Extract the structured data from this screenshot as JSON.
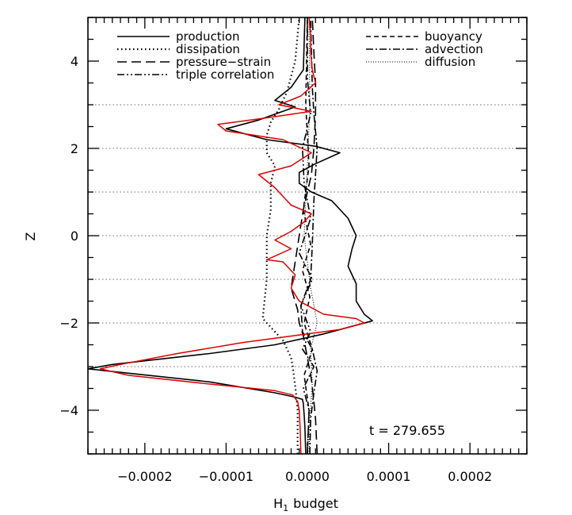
{
  "chart_data": {
    "type": "line",
    "title": "",
    "xlabel": "H",
    "xlabel_subscript": "1",
    "xlabel_suffix": "budget",
    "ylabel": "Z",
    "xlim": [
      -0.00027,
      0.00027
    ],
    "ylim": [
      -5,
      5
    ],
    "x_ticks": [
      -0.0002,
      -0.0001,
      0.0,
      0.0001,
      0.0002
    ],
    "x_tick_labels": [
      "−0.0002",
      "−0.0001",
      "0.0000",
      "0.0001",
      "0.0002"
    ],
    "y_ticks": [
      -4,
      -2,
      0,
      2,
      4
    ],
    "y_tick_labels": [
      "−4",
      "−2",
      "0",
      "2",
      "4"
    ],
    "y_gridlines": [
      -3,
      -2,
      -1,
      0,
      1,
      2,
      3
    ],
    "grid_style": "dotted horizontal",
    "annotation": "t  =  279.655",
    "legend_left": [
      "production",
      "dissipation",
      "pressure−strain",
      "triple correlation"
    ],
    "legend_right": [
      "buoyancy",
      "advection",
      "diffusion"
    ],
    "series": [
      {
        "name": "production",
        "style": "solid",
        "color": "#000000",
        "x": [
          -2e-06,
          -3e-06,
          -4e-06,
          -5e-06,
          -6e-06,
          -1.5e-05,
          -4e-05,
          -0.00012,
          -0.00022,
          -0.00027,
          -0.00024,
          -0.00012,
          -4e-05,
          2e-05,
          6e-05,
          8e-05,
          7e-05,
          6e-05,
          6e-05,
          5e-05,
          5.5e-05,
          6e-05,
          5e-05,
          3e-05,
          5e-06,
          -1e-05,
          -1e-05,
          1e-05,
          4e-05,
          1e-05,
          -5e-05,
          -0.0001,
          -6e-05,
          -3e-05,
          -1.5e-05,
          -4e-05,
          -2e-05,
          -5e-06,
          -4e-06,
          -3e-06
        ],
        "y": [
          -5.0,
          -4.4,
          -4.1,
          -3.85,
          -3.75,
          -3.7,
          -3.6,
          -3.35,
          -3.15,
          -3.05,
          -2.95,
          -2.7,
          -2.5,
          -2.25,
          -2.05,
          -1.95,
          -1.8,
          -1.5,
          -1.1,
          -0.7,
          -0.3,
          0.0,
          0.4,
          0.8,
          1.0,
          1.2,
          1.45,
          1.65,
          1.9,
          2.05,
          2.2,
          2.45,
          2.65,
          2.85,
          2.95,
          3.1,
          3.4,
          3.8,
          4.4,
          5.0
        ]
      },
      {
        "name": "dissipation",
        "style": "dotted",
        "color": "#000000",
        "x": [
          -1.2e-05,
          -1.2e-05,
          -1.4e-05,
          -1.6e-05,
          -1.8e-05,
          -2e-05,
          -2.5e-05,
          -3e-05,
          -4e-05,
          -5.5e-05,
          -5e-05,
          -5e-05,
          -4.5e-05,
          -4.5e-05,
          -4e-05,
          -5e-05,
          -5e-05,
          -4.5e-05,
          -3.5e-05,
          -2.5e-05,
          -1.5e-05,
          -1e-05
        ],
        "y": [
          -5.0,
          -4.0,
          -3.6,
          -3.3,
          -3.0,
          -2.8,
          -2.6,
          -2.4,
          -2.2,
          -1.9,
          -1.0,
          0.0,
          0.6,
          1.2,
          1.6,
          1.9,
          2.3,
          2.6,
          2.9,
          3.3,
          4.0,
          5.0
        ]
      },
      {
        "name": "pressure−strain",
        "style": "long-dash",
        "color": "#000000",
        "x": [
          1.2e-05,
          1e-05,
          8e-06,
          5e-06,
          0.0,
          -5e-06,
          -1e-05,
          -1.2e-05,
          -2e-05,
          -1.5e-05,
          -1e-05,
          -5e-06,
          5e-06,
          8e-06,
          1e-05,
          1e-05,
          8e-06,
          6e-06
        ],
        "y": [
          -5.0,
          -4.2,
          -3.8,
          -3.3,
          -2.8,
          -2.3,
          -2.0,
          -1.7,
          -1.2,
          -0.6,
          0.0,
          0.6,
          1.4,
          2.0,
          2.8,
          3.5,
          4.2,
          5.0
        ]
      },
      {
        "name": "triple correlation",
        "style": "dash-dot-dot",
        "color": "#000000",
        "x": [
          0.0,
          2e-06,
          -5e-06,
          8e-06,
          -6e-06,
          4e-06,
          -8e-06,
          6e-06,
          -1e-05,
          4e-06,
          -4e-06,
          -6e-06,
          4e-06,
          0.0,
          0.0
        ],
        "y": [
          -5.0,
          -4.0,
          -3.5,
          -3.0,
          -2.6,
          -2.2,
          -1.6,
          -1.0,
          -0.4,
          0.4,
          1.2,
          2.0,
          2.8,
          3.6,
          5.0
        ]
      },
      {
        "name": "buoyancy",
        "style": "dashed",
        "color": "#000000",
        "x": [
          0.0,
          2e-06,
          -4e-06,
          6e-06,
          -4e-06,
          3e-06,
          -6e-06,
          4e-06,
          -5e-06,
          2e-06,
          -2e-06,
          0.0
        ],
        "y": [
          -5.0,
          -4.0,
          -3.2,
          -2.6,
          -2.0,
          -1.4,
          -0.8,
          -0.2,
          0.6,
          1.6,
          3.0,
          5.0
        ]
      },
      {
        "name": "advection",
        "style": "dash-dot",
        "color": "#000000",
        "x": [
          3e-06,
          4e-06,
          8e-06,
          1.2e-05,
          6e-06,
          -6e-06,
          -8e-06,
          4e-06,
          6e-06,
          8e-06,
          1.2e-05,
          8e-06,
          6e-06,
          5e-06,
          4e-06
        ],
        "y": [
          -5.0,
          -4.2,
          -3.6,
          -3.1,
          -2.6,
          -2.2,
          -1.6,
          -1.0,
          -0.2,
          0.8,
          2.0,
          2.8,
          3.4,
          4.2,
          5.0
        ]
      },
      {
        "name": "diffusion",
        "style": "fine-dotted",
        "color": "#000000",
        "x": [
          2e-06,
          3e-06,
          6e-06,
          4e-06,
          1.2e-05,
          4e-06,
          -4e-06,
          0.0,
          3e-06,
          2e-06
        ],
        "y": [
          -5.0,
          -4.2,
          -3.4,
          -2.6,
          -2.0,
          -1.2,
          0.0,
          1.6,
          3.0,
          5.0
        ]
      },
      {
        "name": "",
        "style": "solid",
        "color": "#dd0000",
        "x": [
          -8e-06,
          -9e-06,
          -1e-05,
          -1.2e-05,
          -1.8e-05,
          -4e-05,
          -0.00012,
          -0.00022,
          -0.000255,
          -0.00023,
          -0.00016,
          -8e-05,
          -2e-05,
          4e-05,
          7e-05,
          6e-05,
          2e-05,
          -1e-05,
          -2e-05,
          -1.5e-05,
          -3e-05,
          -5e-05,
          -2e-05,
          -4e-05,
          -2e-05,
          -5e-06,
          5e-06,
          -2e-05,
          -3e-05,
          -4e-05,
          -6e-05,
          -2e-05,
          5e-06,
          -3e-05,
          -0.0001,
          -0.00011,
          -5e-05,
          5e-06,
          -3.5e-05,
          -8e-06,
          1e-05,
          6e-06,
          4e-06,
          4e-06,
          2e-06
        ],
        "y": [
          -5.0,
          -4.4,
          -4.0,
          -3.8,
          -3.65,
          -3.55,
          -3.4,
          -3.2,
          -3.05,
          -2.95,
          -2.7,
          -2.45,
          -2.3,
          -2.15,
          -2.0,
          -1.9,
          -1.8,
          -1.5,
          -1.2,
          -0.9,
          -0.6,
          -0.55,
          -0.3,
          -0.1,
          0.1,
          0.3,
          0.5,
          0.7,
          0.9,
          1.1,
          1.4,
          1.6,
          1.9,
          2.2,
          2.4,
          2.55,
          2.7,
          2.85,
          3.0,
          3.2,
          3.5,
          3.8,
          4.2,
          4.6,
          5.0
        ]
      }
    ]
  }
}
